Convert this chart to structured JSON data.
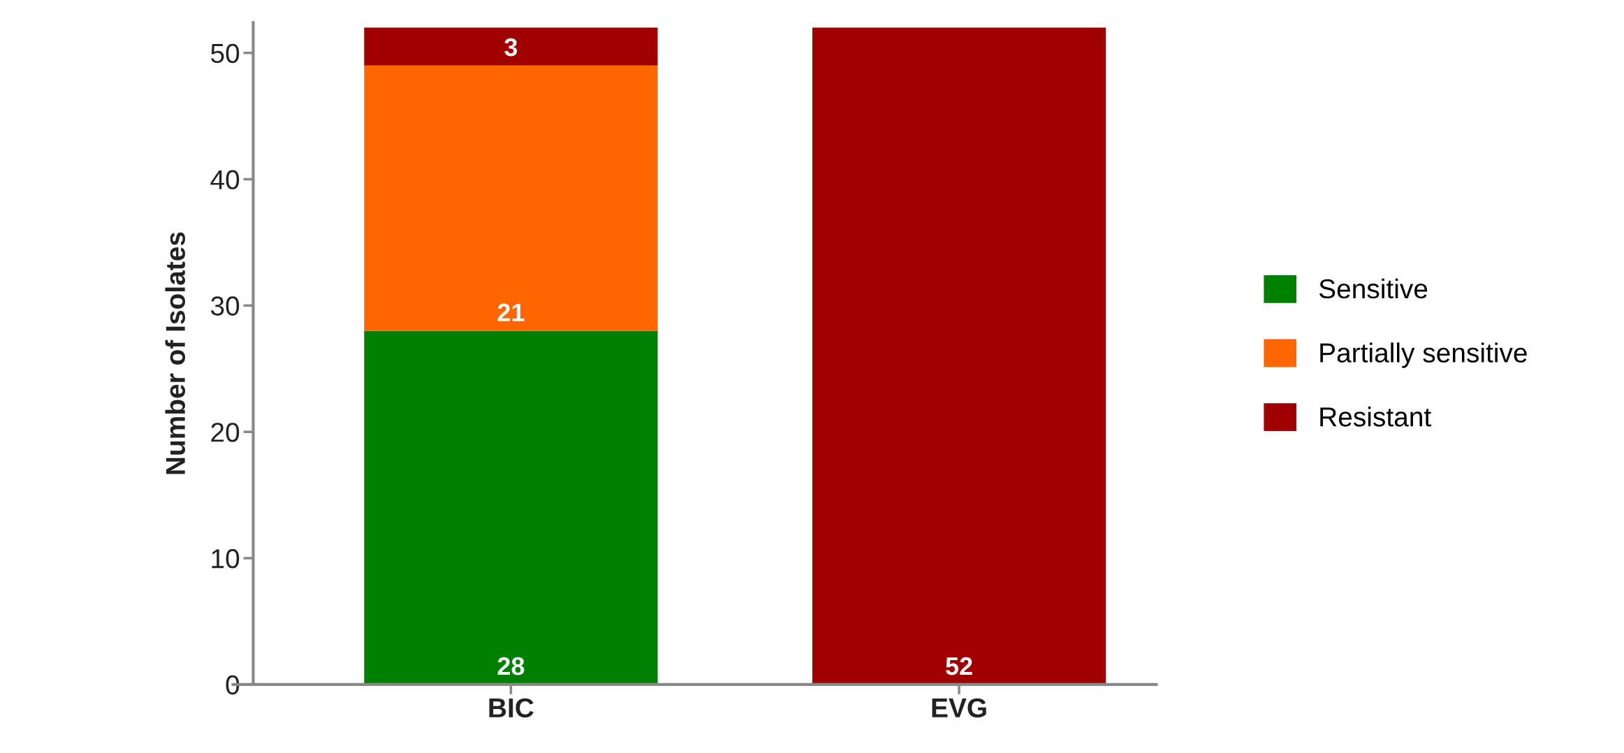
{
  "chart_data": {
    "type": "bar",
    "stacked": true,
    "ylabel": "Number of Isolates",
    "categories": [
      "BIC",
      "EVG"
    ],
    "series": [
      {
        "name": "Sensitive",
        "color": "#008000",
        "values": [
          28,
          0
        ],
        "value_labels": [
          "28",
          null
        ]
      },
      {
        "name": "Partially sensitive",
        "color": "#ff6600",
        "values": [
          21,
          0
        ],
        "value_labels": [
          "21",
          null
        ]
      },
      {
        "name": "Resistant",
        "color": "#a00000",
        "values": [
          3,
          52
        ],
        "value_labels": [
          "3",
          "52"
        ]
      }
    ],
    "ylim": [
      0,
      52.4
    ],
    "yticks": [
      0,
      10,
      20,
      30,
      40,
      50
    ],
    "grid": false,
    "legend": "right"
  }
}
